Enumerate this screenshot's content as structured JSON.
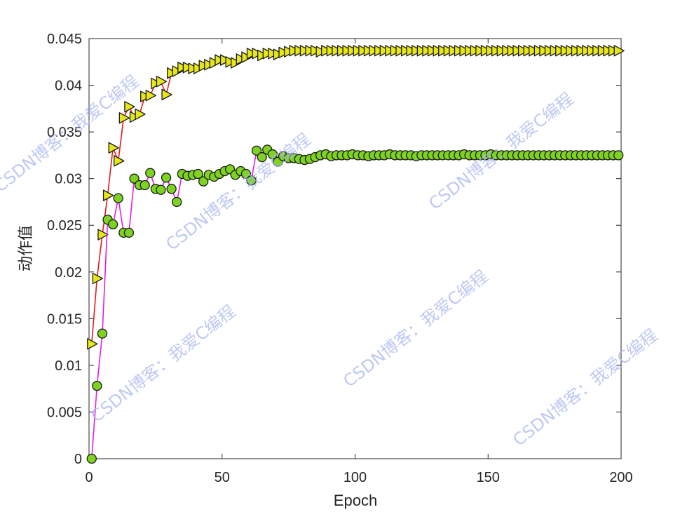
{
  "chart_data": {
    "type": "line",
    "xlabel": "Epoch",
    "ylabel": "动作值",
    "xlim": [
      0,
      200
    ],
    "ylim": [
      0,
      0.045
    ],
    "xticks": [
      "0",
      "50",
      "100",
      "150",
      "200"
    ],
    "yticks": [
      "0",
      "0.005",
      "0.01",
      "0.015",
      "0.02",
      "0.025",
      "0.03",
      "0.035",
      "0.04",
      "0.045"
    ],
    "grid": false,
    "legend": "none",
    "series": [
      {
        "line_color": "#e31a1c",
        "marker": "triangle-right",
        "marker_fill": "#e6e619",
        "x": [
          1,
          3,
          5,
          7,
          9,
          11,
          13,
          15,
          17,
          19,
          21,
          23,
          25,
          27,
          29,
          31,
          33,
          35,
          37,
          39,
          41,
          43,
          45,
          47,
          49,
          51,
          53,
          55,
          57,
          59,
          61,
          63,
          65,
          67,
          69,
          71,
          73,
          75,
          77,
          79,
          81,
          83,
          85,
          87,
          89,
          91,
          93,
          95,
          97,
          99,
          101,
          103,
          105,
          107,
          109,
          111,
          113,
          115,
          117,
          119,
          121,
          123,
          125,
          127,
          129,
          131,
          133,
          135,
          137,
          139,
          141,
          143,
          145,
          147,
          149,
          151,
          153,
          155,
          157,
          159,
          161,
          163,
          165,
          167,
          169,
          171,
          173,
          175,
          177,
          179,
          181,
          183,
          185,
          187,
          189,
          191,
          193,
          195,
          197,
          199
        ],
        "y": [
          0.0123,
          0.0193,
          0.024,
          0.0282,
          0.0333,
          0.0319,
          0.0365,
          0.0377,
          0.0366,
          0.0369,
          0.0388,
          0.0389,
          0.0402,
          0.0404,
          0.039,
          0.0413,
          0.0415,
          0.0419,
          0.0419,
          0.0418,
          0.0418,
          0.0421,
          0.0422,
          0.0424,
          0.0427,
          0.0427,
          0.0425,
          0.0424,
          0.0428,
          0.043,
          0.0434,
          0.0434,
          0.0432,
          0.0434,
          0.0434,
          0.0433,
          0.0435,
          0.0436,
          0.0437,
          0.0437,
          0.0437,
          0.0437,
          0.0437,
          0.0436,
          0.0437,
          0.0437,
          0.0437,
          0.0437,
          0.0437,
          0.0437,
          0.0437,
          0.0437,
          0.0437,
          0.0437,
          0.0437,
          0.0437,
          0.0437,
          0.0437,
          0.0437,
          0.0437,
          0.0437,
          0.0437,
          0.0437,
          0.0437,
          0.0437,
          0.0437,
          0.0437,
          0.0437,
          0.0437,
          0.0437,
          0.0437,
          0.0437,
          0.0437,
          0.0437,
          0.0437,
          0.0437,
          0.0437,
          0.0437,
          0.0437,
          0.0437,
          0.0437,
          0.0437,
          0.0437,
          0.0437,
          0.0437,
          0.0437,
          0.0437,
          0.0437,
          0.0437,
          0.0437,
          0.0437,
          0.0437,
          0.0437,
          0.0437,
          0.0437,
          0.0437,
          0.0437,
          0.0437,
          0.0437,
          0.0437
        ]
      },
      {
        "line_color": "#e61ee6",
        "marker": "circle",
        "marker_fill": "#7ed321",
        "x": [
          1,
          3,
          5,
          7,
          9,
          11,
          13,
          15,
          17,
          19,
          21,
          23,
          25,
          27,
          29,
          31,
          33,
          35,
          37,
          39,
          41,
          43,
          45,
          47,
          49,
          51,
          53,
          55,
          57,
          59,
          61,
          63,
          65,
          67,
          69,
          71,
          73,
          75,
          77,
          79,
          81,
          83,
          85,
          87,
          89,
          91,
          93,
          95,
          97,
          99,
          101,
          103,
          105,
          107,
          109,
          111,
          113,
          115,
          117,
          119,
          121,
          123,
          125,
          127,
          129,
          131,
          133,
          135,
          137,
          139,
          141,
          143,
          145,
          147,
          149,
          151,
          153,
          155,
          157,
          159,
          161,
          163,
          165,
          167,
          169,
          171,
          173,
          175,
          177,
          179,
          181,
          183,
          185,
          187,
          189,
          191,
          193,
          195,
          197,
          199
        ],
        "y": [
          0.0,
          0.0078,
          0.0134,
          0.0256,
          0.0251,
          0.0279,
          0.0242,
          0.0242,
          0.03,
          0.0293,
          0.0293,
          0.0306,
          0.0289,
          0.0288,
          0.0301,
          0.0289,
          0.0275,
          0.0305,
          0.0303,
          0.0304,
          0.0305,
          0.0297,
          0.0304,
          0.0302,
          0.0305,
          0.0308,
          0.031,
          0.0304,
          0.0308,
          0.0305,
          0.0298,
          0.033,
          0.0323,
          0.0331,
          0.0326,
          0.0318,
          0.0324,
          0.0322,
          0.0322,
          0.0321,
          0.032,
          0.0321,
          0.0323,
          0.0325,
          0.0326,
          0.0324,
          0.0325,
          0.0325,
          0.0325,
          0.0326,
          0.0325,
          0.0325,
          0.0324,
          0.0325,
          0.0325,
          0.0325,
          0.0326,
          0.0325,
          0.0325,
          0.0325,
          0.0325,
          0.0324,
          0.0325,
          0.0325,
          0.0325,
          0.0325,
          0.0325,
          0.0325,
          0.0325,
          0.0325,
          0.0326,
          0.0325,
          0.0325,
          0.0325,
          0.0325,
          0.0326,
          0.0325,
          0.0325,
          0.0325,
          0.0325,
          0.0325,
          0.0325,
          0.0325,
          0.0325,
          0.0325,
          0.0325,
          0.0325,
          0.0325,
          0.0325,
          0.0325,
          0.0325,
          0.0325,
          0.0325,
          0.0325,
          0.0325,
          0.0325,
          0.0325,
          0.0325,
          0.0325,
          0.0325
        ]
      }
    ]
  },
  "watermark": {
    "text": "CSDN博客：我爱C编程",
    "color": "#aab8f0"
  }
}
